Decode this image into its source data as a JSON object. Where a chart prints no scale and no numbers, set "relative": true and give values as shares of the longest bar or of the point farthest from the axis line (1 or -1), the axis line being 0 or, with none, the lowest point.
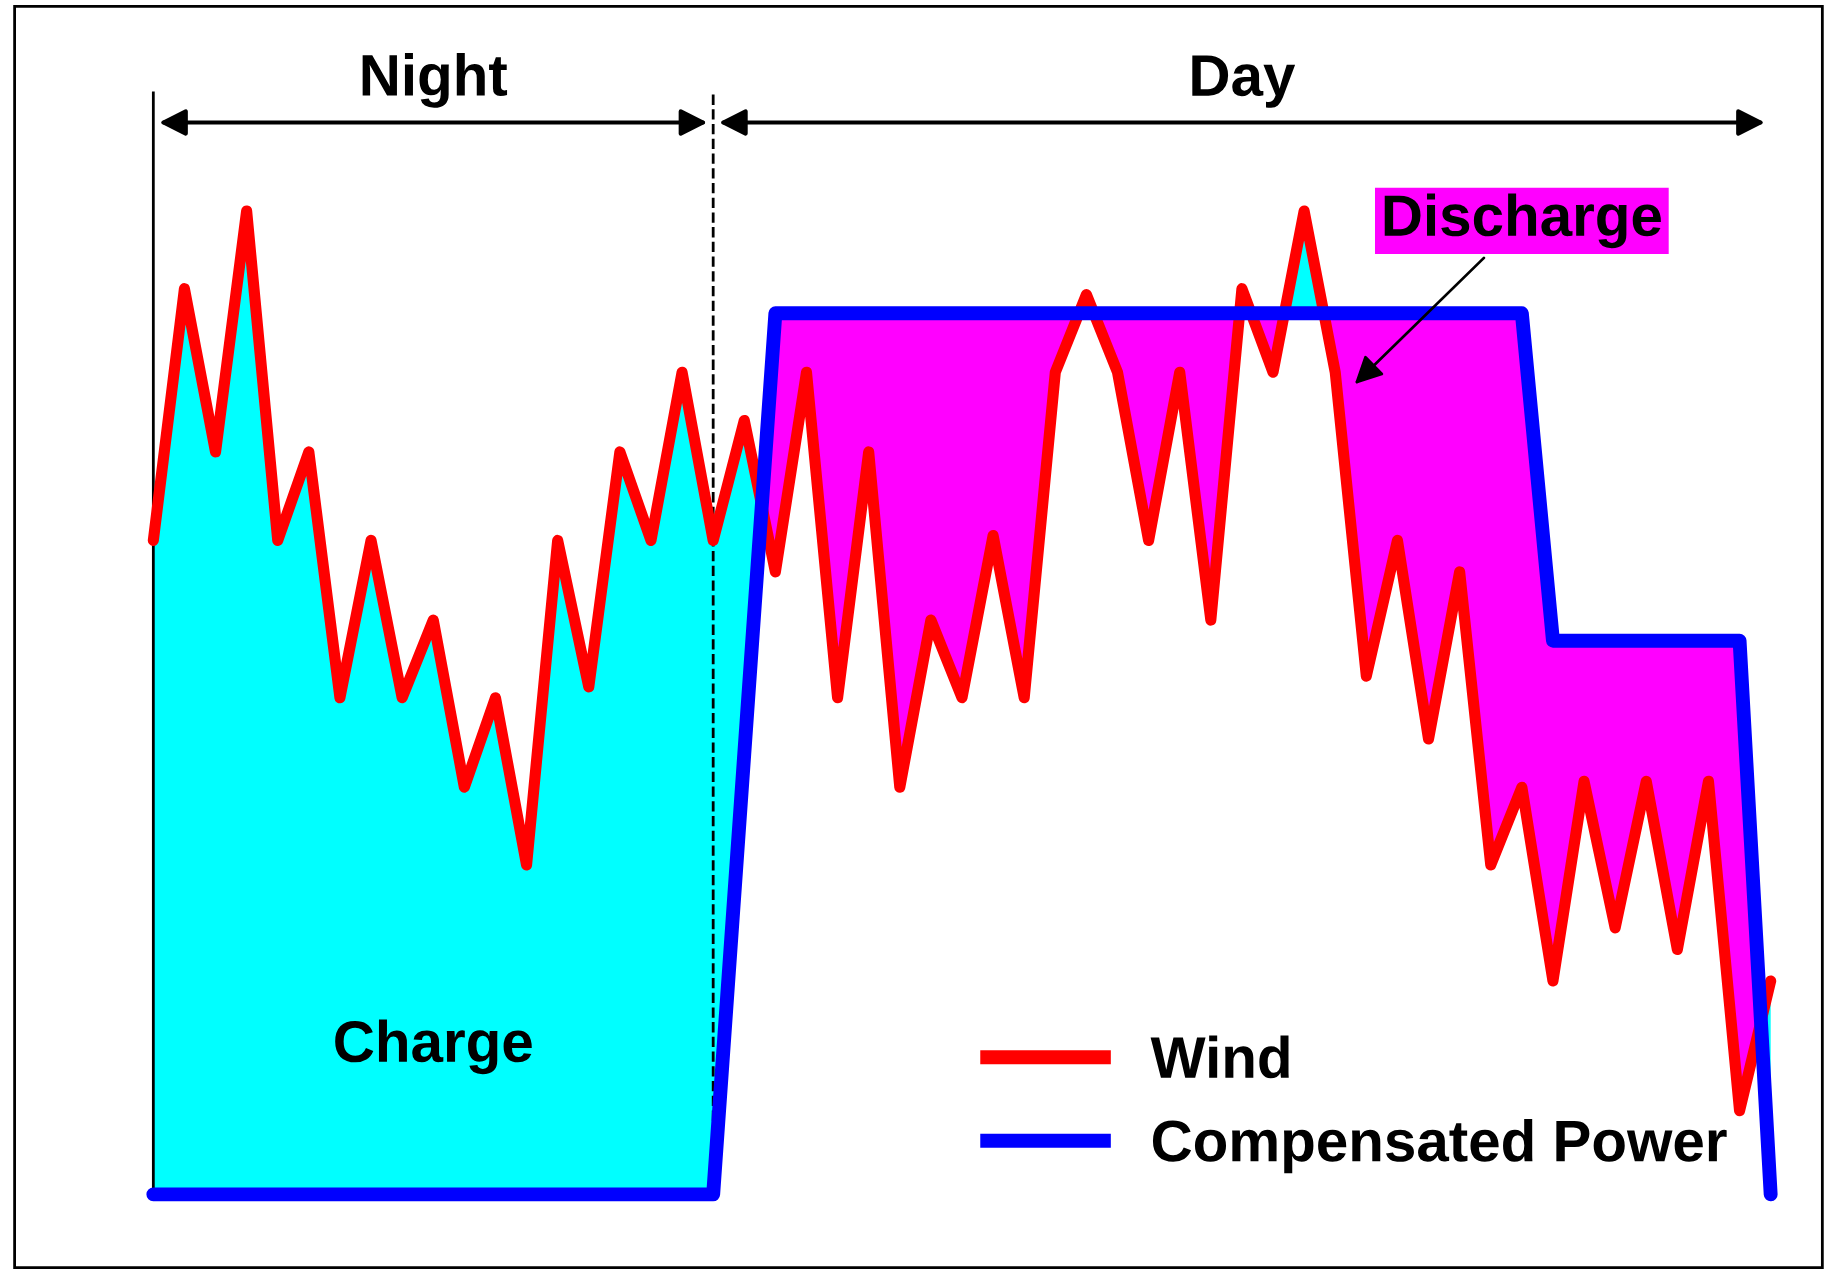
{
  "chart_data": {
    "type": "line",
    "relative": true,
    "colors": [
      "#00ffff",
      "#ff00ff"
    ],
    "legend": "bottom right",
    "grid": false,
    "categories": [
      null,
      null,
      null,
      null,
      null,
      null,
      null,
      null,
      null,
      null,
      null,
      null,
      null,
      null,
      null,
      null,
      null,
      null,
      null,
      null,
      null,
      null,
      null,
      null,
      null,
      null,
      null,
      null,
      null,
      null,
      null,
      null,
      null,
      null,
      null,
      null,
      null,
      null,
      null,
      null,
      null,
      null,
      null,
      null,
      null,
      null,
      null,
      null,
      null,
      null,
      null,
      null,
      null
    ],
    "series": [
      {
        "name": "Wind",
        "color": "#ff0000",
        "values": [
          0.665,
          0.921,
          0.755,
          1.0,
          0.665,
          0.755,
          0.505,
          0.665,
          0.505,
          0.584,
          0.414,
          0.505,
          0.335,
          0.665,
          0.516,
          0.755,
          0.665,
          0.836,
          0.665,
          0.787,
          0.633,
          0.836,
          0.505,
          0.755,
          0.414,
          0.584,
          0.505,
          0.67,
          0.505,
          0.836,
          0.915,
          0.836,
          0.665,
          0.836,
          0.584,
          0.921,
          0.836,
          1.0,
          0.836,
          0.527,
          0.665,
          0.463,
          0.633,
          0.335,
          0.414,
          0.217,
          0.42,
          0.271,
          0.42,
          0.249,
          0.42,
          0.085,
          0.217
        ]
      },
      {
        "name": "Compensated Power",
        "color": "#0000ff",
        "values": [
          0,
          0,
          0,
          0,
          0,
          0,
          0,
          0,
          0,
          0,
          0,
          0,
          0,
          0,
          0,
          0,
          0,
          0,
          0,
          0.448,
          0.896,
          0.896,
          0.896,
          0.896,
          0.896,
          0.896,
          0.896,
          0.896,
          0.896,
          0.896,
          0.896,
          0.896,
          0.896,
          0.896,
          0.896,
          0.896,
          0.896,
          0.896,
          0.896,
          0.896,
          0.896,
          0.896,
          0.896,
          0.896,
          0.896,
          0.563,
          0.563,
          0.563,
          0.563,
          0.563,
          0.563,
          0.563,
          0
        ]
      }
    ],
    "annotations": [
      "Night",
      "Day",
      "Charge",
      "Discharge"
    ]
  }
}
